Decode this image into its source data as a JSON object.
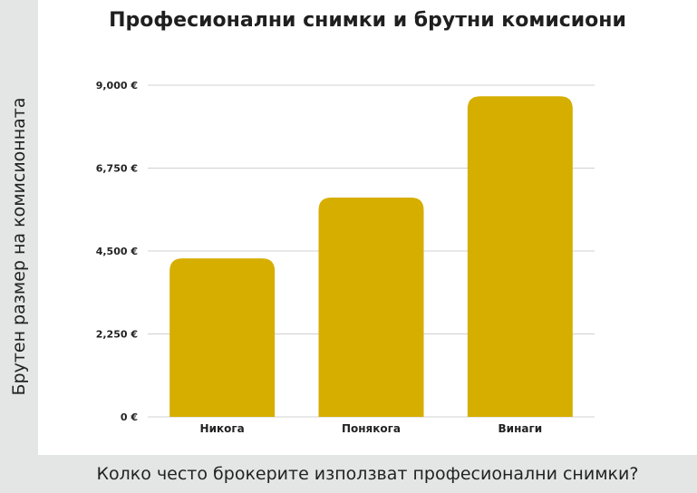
{
  "chart_data": {
    "type": "bar",
    "title": "Професионални снимки и брутни комисиони",
    "xlabel": "Колко често брокерите използват професионални снимки?",
    "ylabel": "Брутен размер на комисионната",
    "categories": [
      "Никога",
      "Понякога",
      "Винаги"
    ],
    "values": [
      4300,
      5950,
      8700
    ],
    "ylim": [
      0,
      9000
    ],
    "yticks": [
      0,
      2250,
      4500,
      6750,
      9000
    ],
    "ytick_labels": [
      "0 €",
      "2,250 €",
      "4,500 €",
      "6,750 €",
      "9,000 €"
    ],
    "grid": true,
    "bar_color": "#d6ae00",
    "grid_color": "#d0d0d0"
  }
}
